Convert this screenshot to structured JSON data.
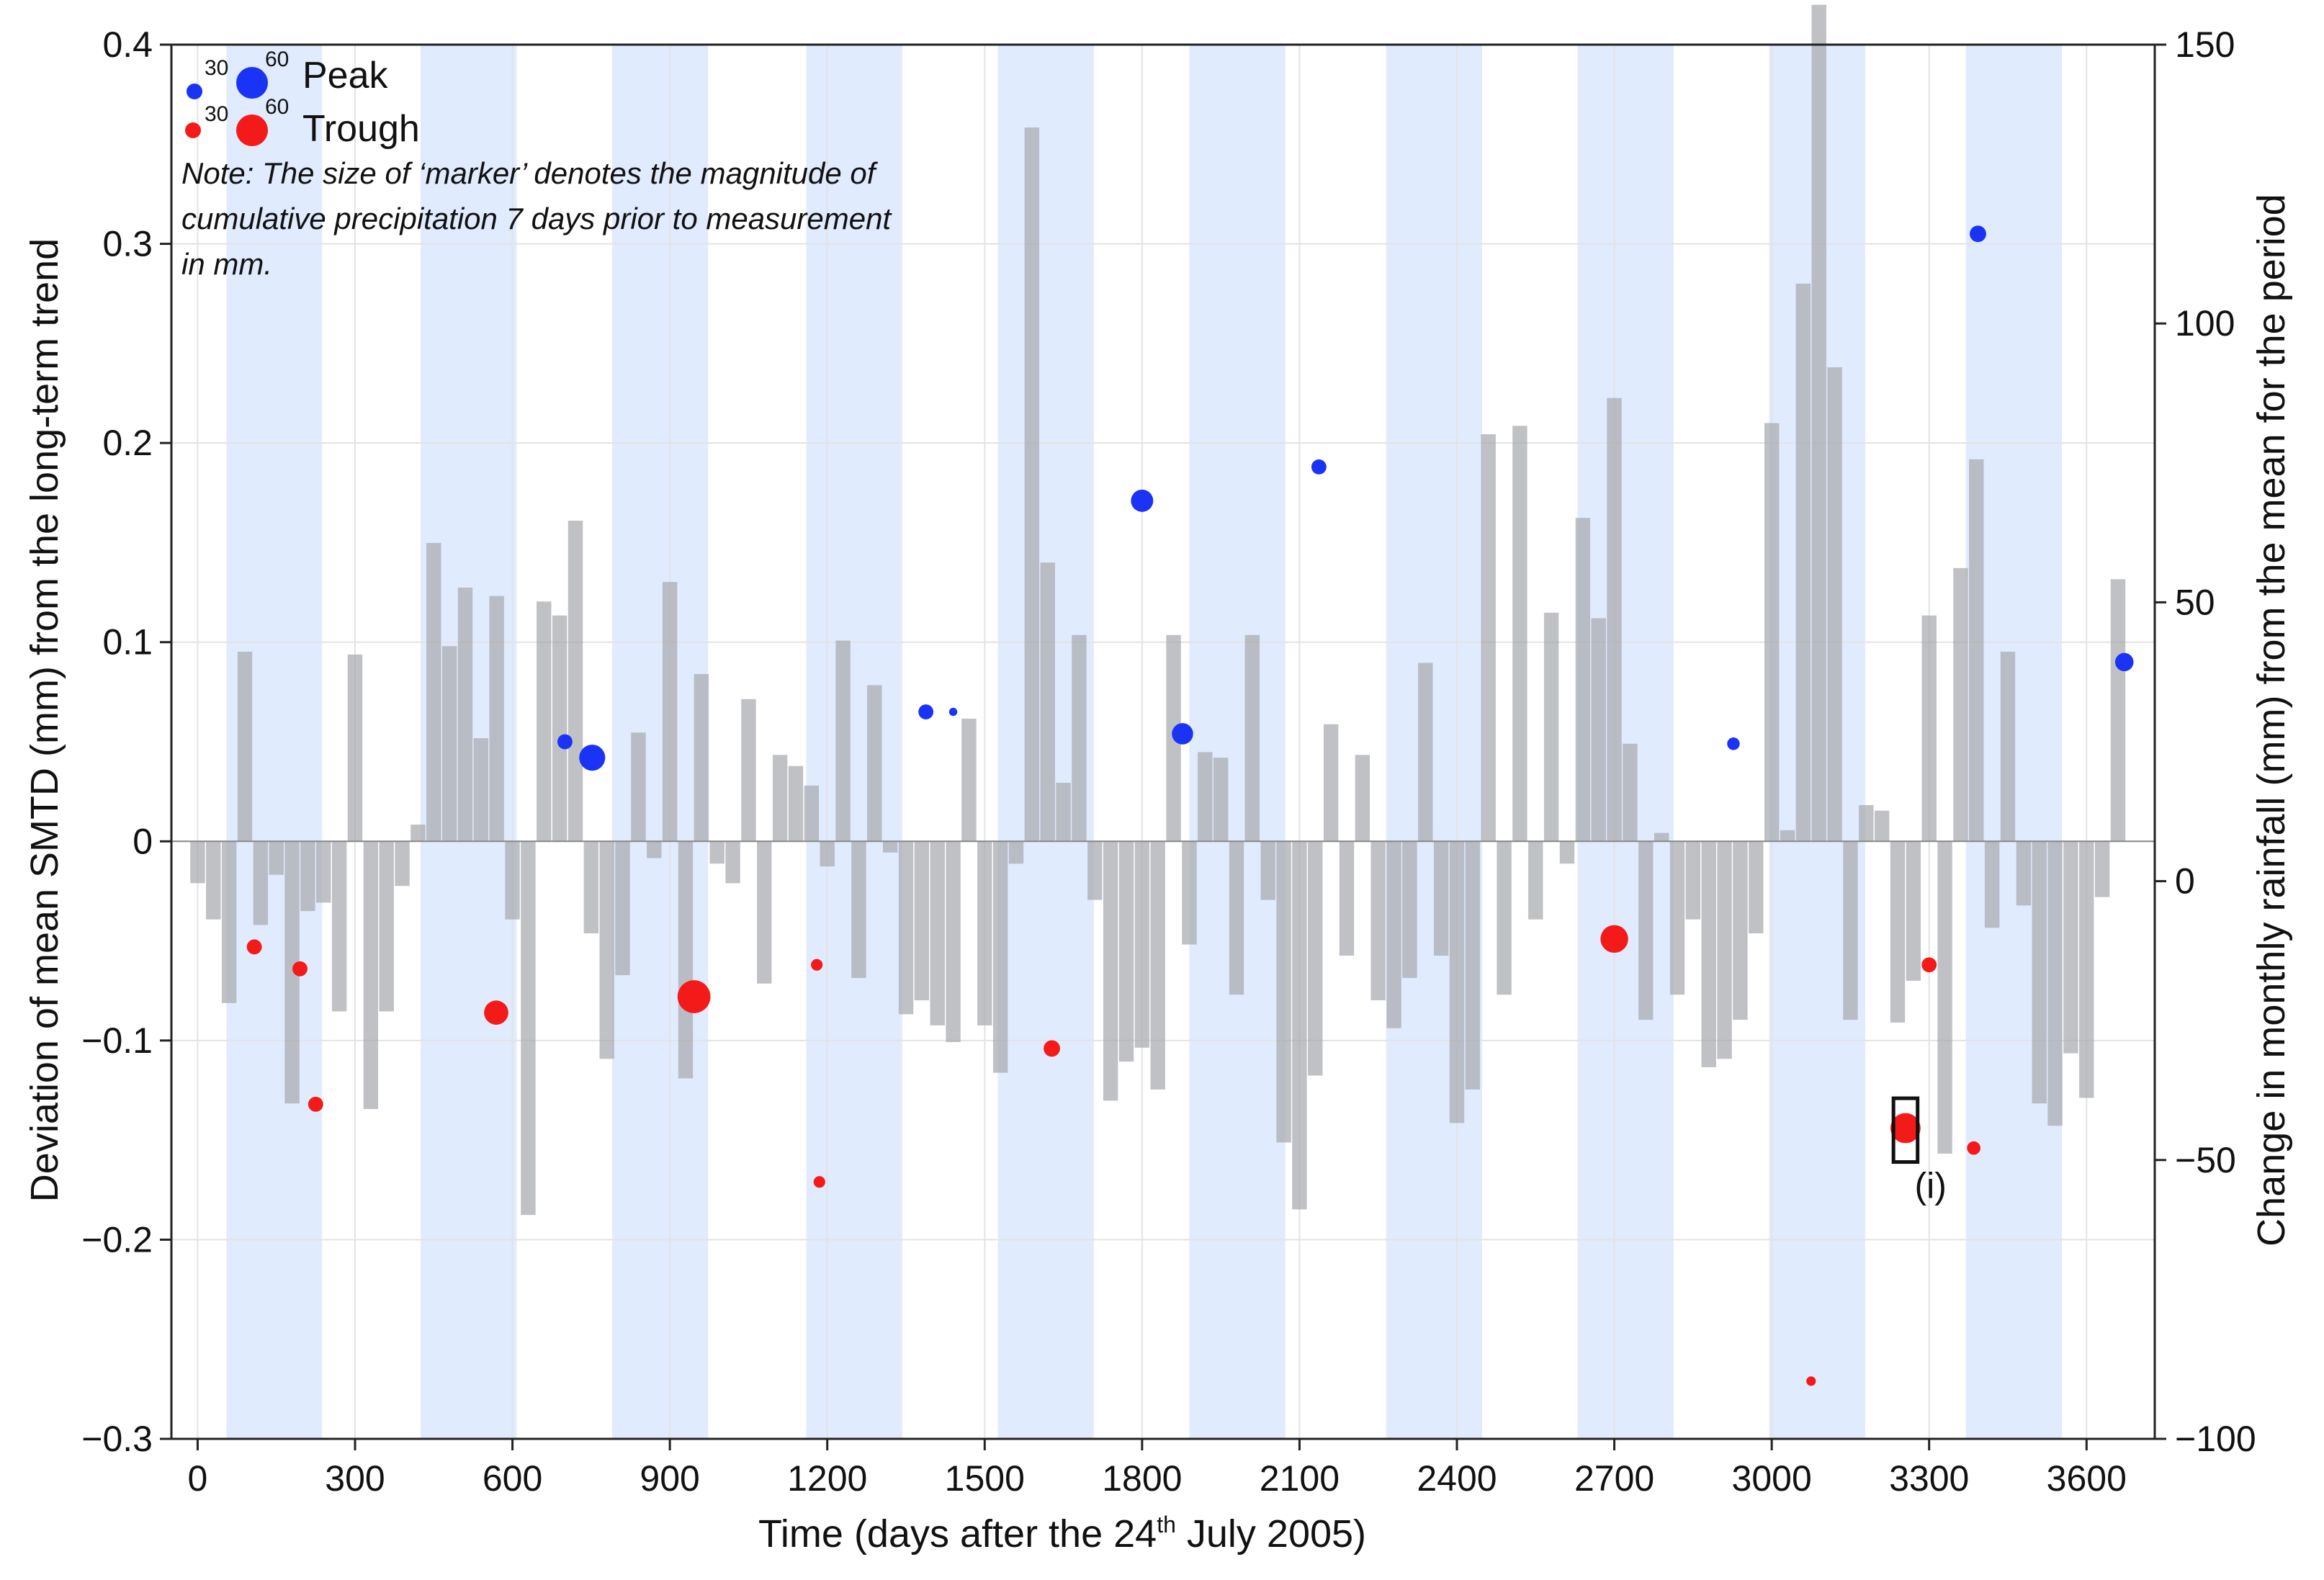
{
  "chart_data": {
    "type": "bar+scatter",
    "xlabel_main": "Time (days after the 24",
    "xlabel_sup": "th",
    "xlabel_tail": " July 2005)",
    "ylabel_left": "Deviation of mean SMTD (mm) from the long-term trend",
    "ylabel_right": "Change in monthly rainfall (mm) from the mean for the period",
    "xlim": [
      -50,
      3730
    ],
    "xticks": [
      0,
      300,
      600,
      900,
      1200,
      1500,
      1800,
      2100,
      2400,
      2700,
      3000,
      3300,
      3600
    ],
    "xtick_labels": [
      "0",
      "300",
      "600",
      "900",
      "1200",
      "1500",
      "1800",
      "2100",
      "2400",
      "2700",
      "3000",
      "3300",
      "3600"
    ],
    "ylim_left": [
      -0.3,
      0.4
    ],
    "yticks_left": [
      -0.3,
      -0.2,
      -0.1,
      0,
      0.1,
      0.2,
      0.3,
      0.4
    ],
    "ytick_labels_left": [
      "−0.3",
      "−0.2",
      "−0.1",
      "0",
      "0.1",
      "0.2",
      "0.3",
      "0.4"
    ],
    "ylim_right": [
      -100,
      150
    ],
    "yticks_right": [
      -100,
      -50,
      0,
      50,
      100,
      150
    ],
    "ytick_labels_right": [
      "−100",
      "−50",
      "0",
      "50",
      "100",
      "150"
    ],
    "grid": true,
    "shaded_periods": [
      [
        55,
        237
      ],
      [
        425,
        608
      ],
      [
        790,
        973
      ],
      [
        1160,
        1343
      ],
      [
        1525,
        1708
      ],
      [
        1890,
        2073
      ],
      [
        2265,
        2448
      ],
      [
        2630,
        2813
      ],
      [
        2995,
        3178
      ],
      [
        3370,
        3553
      ]
    ],
    "rainfall_bar_width_days": 28,
    "rainfall_series": {
      "name": "Change in monthly rainfall",
      "x": [
        0,
        30,
        60,
        90,
        120,
        150,
        180,
        210,
        240,
        270,
        300,
        330,
        360,
        390,
        420,
        450,
        480,
        510,
        540,
        570,
        600,
        630,
        660,
        690,
        720,
        750,
        780,
        810,
        840,
        870,
        900,
        930,
        960,
        990,
        1020,
        1050,
        1080,
        1110,
        1140,
        1170,
        1200,
        1230,
        1260,
        1290,
        1320,
        1350,
        1380,
        1410,
        1440,
        1470,
        1500,
        1530,
        1560,
        1590,
        1620,
        1650,
        1680,
        1710,
        1740,
        1770,
        1800,
        1830,
        1860,
        1890,
        1920,
        1950,
        1980,
        2010,
        2040,
        2070,
        2100,
        2130,
        2160,
        2190,
        2220,
        2250,
        2280,
        2310,
        2340,
        2370,
        2400,
        2430,
        2460,
        2490,
        2520,
        2550,
        2580,
        2610,
        2640,
        2670,
        2700,
        2730,
        2760,
        2790,
        2820,
        2850,
        2880,
        2910,
        2940,
        2970,
        3000,
        3030,
        3060,
        3090,
        3120,
        3150,
        3180,
        3210,
        3240,
        3270,
        3300,
        3330,
        3360,
        3390,
        3420,
        3450,
        3480,
        3510,
        3540,
        3570,
        3600,
        3630,
        3660
      ],
      "values": [
        -7.5,
        -14,
        -29,
        34,
        -15,
        -6,
        -47,
        -12.5,
        -11,
        -30.5,
        33.5,
        -48,
        -30.5,
        -8,
        3,
        53.5,
        35,
        45.5,
        18.5,
        44,
        -14,
        -67,
        43,
        40.5,
        57.5,
        -16.5,
        -39,
        -24,
        19.5,
        -3,
        46.5,
        -42.5,
        30,
        -4,
        -7.5,
        25.5,
        -25.5,
        15.5,
        13.5,
        10,
        -4.5,
        36,
        -24.5,
        28,
        -2,
        -31,
        -28.5,
        -33,
        -36,
        22,
        -33,
        -41.5,
        -4,
        128,
        50,
        10.5,
        37,
        -10.5,
        -46.5,
        -39.5,
        -37,
        -44.5,
        37,
        -18.5,
        16,
        15,
        -27.5,
        37,
        -10.5,
        -54,
        -66,
        -42,
        21,
        -20.5,
        15.5,
        -28.5,
        -33.5,
        -24.5,
        32,
        -20.5,
        -50.5,
        -44.5,
        73,
        -27.5,
        74.5,
        -14,
        41,
        -4,
        58,
        40,
        79.5,
        17.5,
        -32,
        1.5,
        -27.5,
        -14,
        -40.5,
        -39,
        -32,
        -16.5,
        75,
        2,
        100,
        150,
        85,
        -32,
        6.5,
        5.5,
        -32.5,
        -25,
        40.5,
        -56,
        49,
        68.5,
        -15.5,
        34,
        -11.5,
        -47,
        -51,
        -38,
        -46,
        -10,
        47
      ]
    },
    "scatter_series": [
      {
        "name": "Peak",
        "color": "#1a33f5",
        "points": [
          [
            700,
            0.05,
            10
          ],
          [
            752,
            0.042,
            30
          ],
          [
            1388,
            0.065,
            10
          ],
          [
            1440,
            0.065,
            3
          ],
          [
            1800,
            0.171,
            22
          ],
          [
            1877,
            0.054,
            20
          ],
          [
            2137,
            0.188,
            10
          ],
          [
            2927,
            0.049,
            7
          ],
          [
            3393,
            0.305,
            12
          ],
          [
            3672,
            0.09,
            15
          ]
        ]
      },
      {
        "name": "Trough",
        "color": "#f51a1a",
        "points": [
          [
            108,
            -0.053,
            10
          ],
          [
            195,
            -0.064,
            10
          ],
          [
            225,
            -0.132,
            10
          ],
          [
            569,
            -0.086,
            26
          ],
          [
            946,
            -0.078,
            48
          ],
          [
            1180,
            -0.062,
            6
          ],
          [
            1185,
            -0.171,
            6
          ],
          [
            1628,
            -0.104,
            12
          ],
          [
            2700,
            -0.049,
            34
          ],
          [
            3075,
            -0.271,
            4
          ],
          [
            3255,
            -0.144,
            40
          ],
          [
            3300,
            -0.062,
            10
          ],
          [
            3385,
            -0.154,
            8
          ]
        ]
      }
    ],
    "legend": {
      "size_values": [
        "30",
        "60"
      ],
      "peak_label": "Peak",
      "trough_label": "Trough",
      "note_lines": [
        "Note: The size of ‘marker’ denotes the magnitude of",
        "cumulative precipitation 7 days prior to measurement",
        "in mm."
      ],
      "placement": "top-left"
    },
    "annotation": {
      "label": "(i)",
      "x_range": [
        3232,
        3278
      ],
      "y_range": [
        -0.161,
        -0.129
      ]
    }
  }
}
